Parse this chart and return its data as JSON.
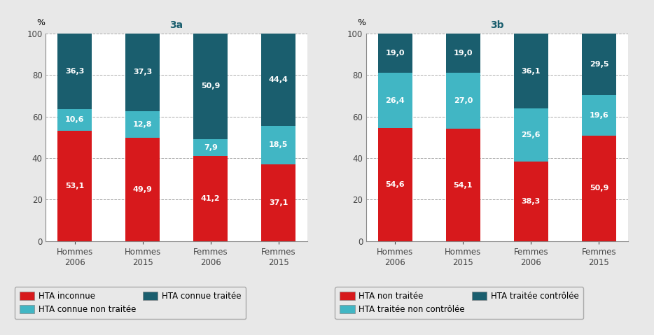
{
  "chart_a": {
    "title": "3a",
    "categories": [
      "Hommes\n2006",
      "Hommes\n2015",
      "Femmes\n2006",
      "Femmes\n2015"
    ],
    "layers": [
      {
        "label": "HTA inconnue",
        "values": [
          53.1,
          49.9,
          41.2,
          37.1
        ],
        "color": "#d7191c"
      },
      {
        "label": "HTA connue non traitée",
        "values": [
          10.6,
          12.8,
          7.9,
          18.5
        ],
        "color": "#41b6c4"
      },
      {
        "label": "HTA connue traitée",
        "values": [
          36.3,
          37.3,
          50.9,
          44.4
        ],
        "color": "#1a5e6e"
      }
    ]
  },
  "chart_b": {
    "title": "3b",
    "categories": [
      "Hommes\n2006",
      "Hommes\n2015",
      "Femmes\n2006",
      "Femmes\n2015"
    ],
    "layers": [
      {
        "label": "HTA non traitée",
        "values": [
          54.6,
          54.1,
          38.3,
          50.9
        ],
        "color": "#d7191c"
      },
      {
        "label": "HTA traitée non contrôlée",
        "values": [
          26.4,
          27.0,
          25.6,
          19.6
        ],
        "color": "#41b6c4"
      },
      {
        "label": "HTA traitée contrôlée",
        "values": [
          19.0,
          19.0,
          36.1,
          29.5
        ],
        "color": "#1a5e6e"
      }
    ]
  },
  "legend_a": [
    {
      "label": "HTA inconnue",
      "color": "#d7191c"
    },
    {
      "label": "HTA connue non traitée",
      "color": "#41b6c4"
    },
    {
      "label": "HTA connue traitée",
      "color": "#1a5e6e"
    }
  ],
  "legend_b": [
    {
      "label": "HTA non traitée",
      "color": "#d7191c"
    },
    {
      "label": "HTA traitée non contrôlée",
      "color": "#41b6c4"
    },
    {
      "label": "HTA traitée contrôlée",
      "color": "#1a5e6e"
    }
  ],
  "bar_width": 0.5,
  "ylim": [
    0,
    100
  ],
  "yticks": [
    0,
    20,
    40,
    60,
    80,
    100
  ],
  "ylabel": "%",
  "text_color_white": "#ffffff",
  "title_color": "#1a5e6e",
  "background_color": "#e8e8e8",
  "axes_background": "#ffffff",
  "font_size_labels": 8.5,
  "font_size_title": 10,
  "font_size_values": 8,
  "font_size_legend": 8.5,
  "font_size_ylabel": 9
}
